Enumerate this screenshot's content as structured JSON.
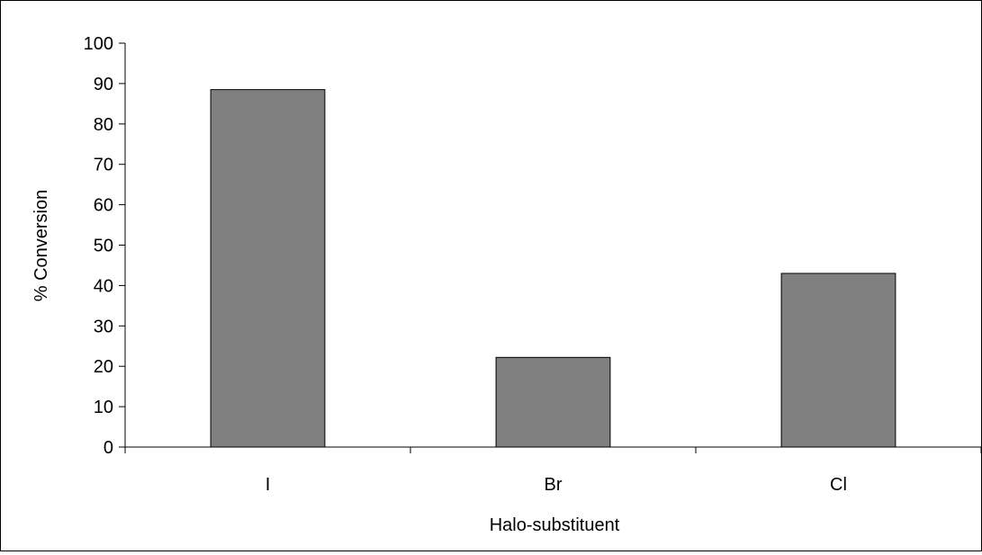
{
  "chart_data": {
    "type": "bar",
    "title": "",
    "xlabel": "Halo-substituent",
    "ylabel": "% Conversion",
    "categories": [
      "I",
      "Br",
      "Cl"
    ],
    "values": [
      88.5,
      22.2,
      43
    ],
    "ylim": [
      0,
      100
    ],
    "yticks": [
      0,
      10,
      20,
      30,
      40,
      50,
      60,
      70,
      80,
      90,
      100
    ],
    "grid": false,
    "legend": "none",
    "bar_color": "#808080",
    "bar_edge_color": "#000000"
  }
}
